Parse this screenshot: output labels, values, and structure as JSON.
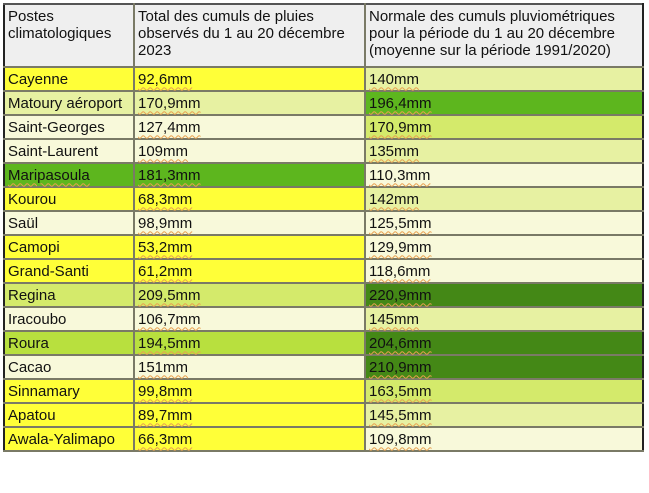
{
  "table": {
    "headers": [
      "Postes climatologiques",
      "Total des cumuls de pluies observés du 1 au 20 décembre 2023",
      "Normale des cumuls pluviométriques pour la période du 1 au 20 décembre (moyenne sur la période  1991/2020)"
    ],
    "rows": [
      {
        "station": "Cayenne",
        "total": "92,6mm",
        "normale": "140mm",
        "color_station": "yellow",
        "color_total": "yellow",
        "color_normale": "pale"
      },
      {
        "station": "Matoury aéroport",
        "total": "170,9mm",
        "normale": "196,4mm",
        "color_station": "pale",
        "color_total": "pale",
        "color_normale": "mid"
      },
      {
        "station": "Saint-Georges",
        "total": "127,4mm",
        "normale": "170,9mm",
        "color_station": "cream",
        "color_total": "cream",
        "color_normale": "lime"
      },
      {
        "station": "Saint-Laurent",
        "total": "109mm",
        "normale": "135mm",
        "color_station": "cream",
        "color_total": "cream",
        "color_normale": "pale"
      },
      {
        "station": "Maripasoula",
        "total": "181,3mm",
        "normale": "110,3mm",
        "color_station": "mid",
        "color_total": "mid",
        "color_normale": "cream"
      },
      {
        "station": "Kourou",
        "total": "68,3mm",
        "normale": "142mm",
        "color_station": "yellow",
        "color_total": "yellow",
        "color_normale": "pale"
      },
      {
        "station": "Saül",
        "total": "98,9mm",
        "normale": "125,5mm",
        "color_station": "cream",
        "color_total": "cream",
        "color_normale": "cream"
      },
      {
        "station": "Camopi",
        "total": "53,2mm",
        "normale": "129,9mm",
        "color_station": "yellow",
        "color_total": "yellow",
        "color_normale": "cream"
      },
      {
        "station": "Grand-Santi",
        "total": "61,2mm",
        "normale": "118,6mm",
        "color_station": "yellow",
        "color_total": "yellow",
        "color_normale": "cream"
      },
      {
        "station": "Regina",
        "total": "209,5mm",
        "normale": "220,9mm",
        "color_station": "lime",
        "color_total": "lime",
        "color_normale": "dark"
      },
      {
        "station": "Iracoubo",
        "total": "106,7mm",
        "normale": "145mm",
        "color_station": "cream",
        "color_total": "cream",
        "color_normale": "pale"
      },
      {
        "station": "Roura",
        "total": "194,5mm",
        "normale": "204,6mm",
        "color_station": "bright",
        "color_total": "bright",
        "color_normale": "dark"
      },
      {
        "station": "Cacao",
        "total": "151mm",
        "normale": "210,9mm",
        "color_station": "cream",
        "color_total": "cream",
        "color_normale": "dark"
      },
      {
        "station": "Sinnamary",
        "total": "99,8mm",
        "normale": "163,5mm",
        "color_station": "yellow",
        "color_total": "yellow",
        "color_normale": "lime"
      },
      {
        "station": "Apatou",
        "total": "89,7mm",
        "normale": "145,5mm",
        "color_station": "yellow",
        "color_total": "yellow",
        "color_normale": "pale"
      },
      {
        "station": "Awala-Yalimapo",
        "total": "66,3mm",
        "normale": "109,8mm",
        "color_station": "yellow",
        "color_total": "yellow",
        "color_normale": "cream"
      }
    ]
  },
  "colors": {
    "yellow": "#ffff38",
    "cream": "#f8f9da",
    "pale": "#e7f1a2",
    "lime": "#d4ea6b",
    "bright": "#b8e03e",
    "mid": "#5db61e",
    "dark": "#448816",
    "header": "#efefef",
    "border": "#7a7a66"
  }
}
